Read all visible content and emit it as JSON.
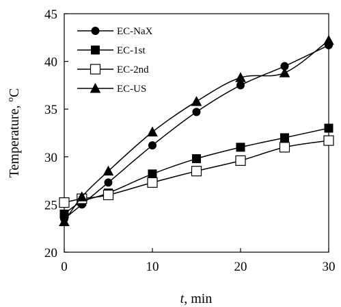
{
  "chart_data": {
    "type": "line",
    "title": "",
    "xlabel": {
      "italic": "t",
      "rest": ", min"
    },
    "ylabel": {
      "main": "Temperature, ",
      "sup": "o",
      "unit": "C"
    },
    "xlim": [
      0,
      30
    ],
    "ylim": [
      20,
      45
    ],
    "xticks": [
      0,
      10,
      20,
      30
    ],
    "yticks": [
      20,
      25,
      30,
      35,
      40,
      45
    ],
    "grid": false,
    "legend_position": "top-left",
    "series": [
      {
        "name": "EC-NaX",
        "marker": "circle-filled",
        "color": "#000000",
        "x": [
          0,
          2,
          5,
          10,
          15,
          20,
          25,
          30
        ],
        "y": [
          23.5,
          25.0,
          27.3,
          31.2,
          34.7,
          37.5,
          39.5,
          41.7
        ]
      },
      {
        "name": "EC-1st",
        "marker": "square-filled",
        "color": "#000000",
        "x": [
          0,
          2,
          5,
          10,
          15,
          20,
          25,
          30
        ],
        "y": [
          24.0,
          25.3,
          26.2,
          28.2,
          29.8,
          31.0,
          32.0,
          33.0
        ]
      },
      {
        "name": "EC-2nd",
        "marker": "square-open",
        "color": "#000000",
        "x": [
          0,
          2,
          5,
          10,
          15,
          20,
          25,
          30
        ],
        "y": [
          25.2,
          25.6,
          26.0,
          27.3,
          28.5,
          29.6,
          31.0,
          31.7
        ]
      },
      {
        "name": "EC-US",
        "marker": "triangle-filled",
        "color": "#000000",
        "x": [
          0,
          2,
          5,
          10,
          15,
          20,
          25,
          30
        ],
        "y": [
          23.2,
          25.8,
          28.5,
          32.6,
          35.8,
          38.3,
          38.8,
          42.2
        ]
      }
    ]
  }
}
